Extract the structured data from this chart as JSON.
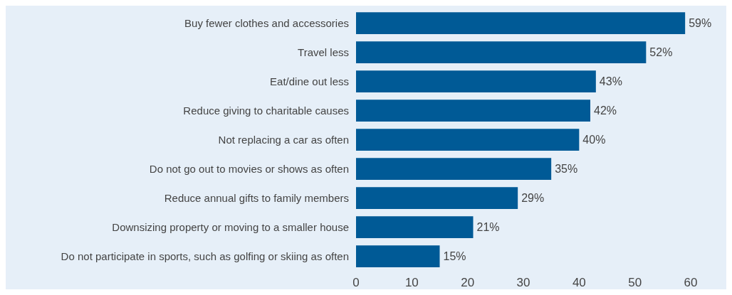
{
  "chart_data": {
    "type": "bar",
    "orientation": "horizontal",
    "categories": [
      "Buy fewer clothes and accessories",
      "Travel less",
      "Eat/dine out less",
      "Reduce giving to charitable causes",
      "Not replacing a car as often",
      "Do not go out to movies or shows as often",
      "Reduce annual gifts to family members",
      "Downsizing property or moving to a smaller house",
      "Do not participate in sports, such as golfing or skiing as often"
    ],
    "values": [
      59,
      52,
      43,
      42,
      40,
      35,
      29,
      21,
      15
    ],
    "value_labels": [
      "59%",
      "52%",
      "43%",
      "42%",
      "40%",
      "35%",
      "29%",
      "21%",
      "15%"
    ],
    "color": "#005a96",
    "xlim": [
      0,
      60
    ],
    "xticks": [
      0,
      10,
      20,
      30,
      40,
      50,
      60
    ]
  }
}
